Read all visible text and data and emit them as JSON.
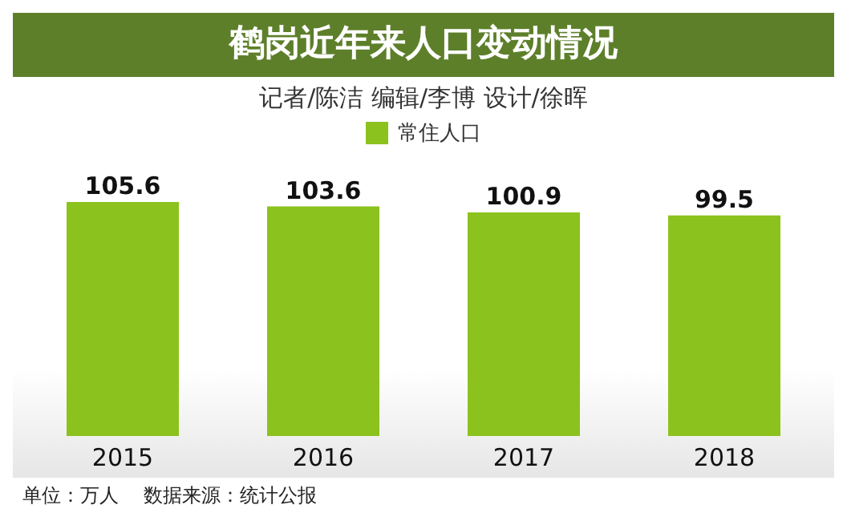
{
  "chart_data": {
    "type": "bar",
    "title": "鹤岗近年来人口变动情况",
    "subtitle": "记者/陈洁 编辑/李博 设计/徐晖",
    "categories": [
      "2015",
      "2016",
      "2017",
      "2018"
    ],
    "series": [
      {
        "name": "常住人口",
        "color": "#8cc21e",
        "values": [
          105.6,
          103.6,
          100.9,
          99.5
        ]
      }
    ],
    "data_labels": true,
    "legend": "top",
    "annotations": [
      "单位：万人    数据来源：统计公报"
    ]
  }
}
